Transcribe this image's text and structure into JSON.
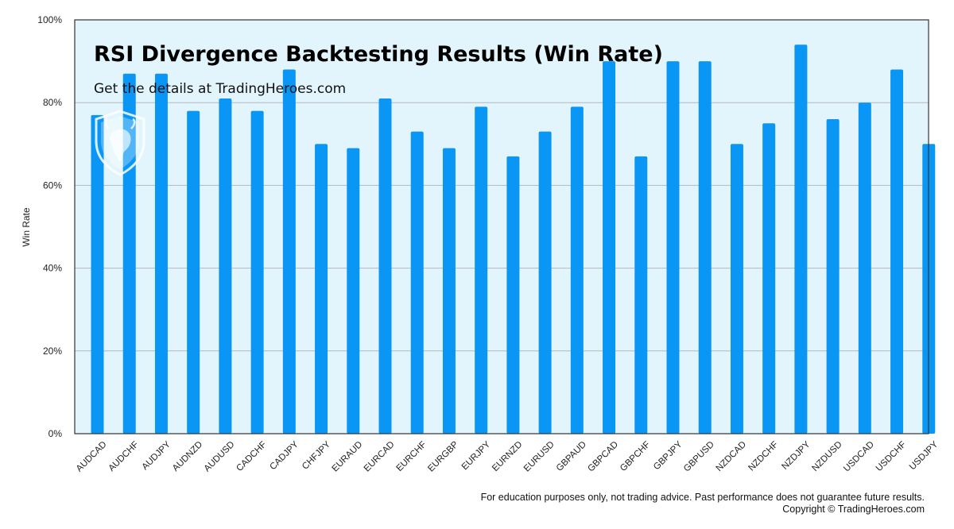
{
  "colors": {
    "bar": "#0a96f5",
    "plot_bg": "#e3f5fc",
    "grid": "#b4b8bc",
    "frame": "#333333"
  },
  "logo": {
    "icon": "shield-bull-logo"
  },
  "footer": {
    "line1": "For education purposes only, not trading advice. Past performance does not guarantee future results.",
    "line2": "Copyright © TradingHeroes.com"
  },
  "chart_data": {
    "type": "bar",
    "title": "RSI Divergence Backtesting Results (Win Rate)",
    "subtitle": "Get the details at TradingHeroes.com",
    "xlabel": "",
    "ylabel": "Win Rate",
    "ylim": [
      0,
      100
    ],
    "yticks": [
      "0%",
      "20%",
      "40%",
      "60%",
      "80%",
      "100%"
    ],
    "grid": true,
    "categories": [
      "AUDCAD",
      "AUDCHF",
      "AUDJPY",
      "AUDNZD",
      "AUDUSD",
      "CADCHF",
      "CADJPY",
      "CHFJPY",
      "EURAUD",
      "EURCAD",
      "EURCHF",
      "EURGBP",
      "EURJPY",
      "EURNZD",
      "EURUSD",
      "GBPAUD",
      "GBPCAD",
      "GBPCHF",
      "GBPJPY",
      "GBPUSD",
      "NZDCAD",
      "NZDCHF",
      "NZDJPY",
      "NZDUSD",
      "USDCAD",
      "USDCHF",
      "USDJPY"
    ],
    "values": [
      77,
      87,
      87,
      78,
      81,
      78,
      88,
      70,
      69,
      81,
      73,
      69,
      79,
      67,
      73,
      79,
      90,
      67,
      90,
      90,
      70,
      75,
      94,
      76,
      80,
      88,
      70
    ]
  }
}
